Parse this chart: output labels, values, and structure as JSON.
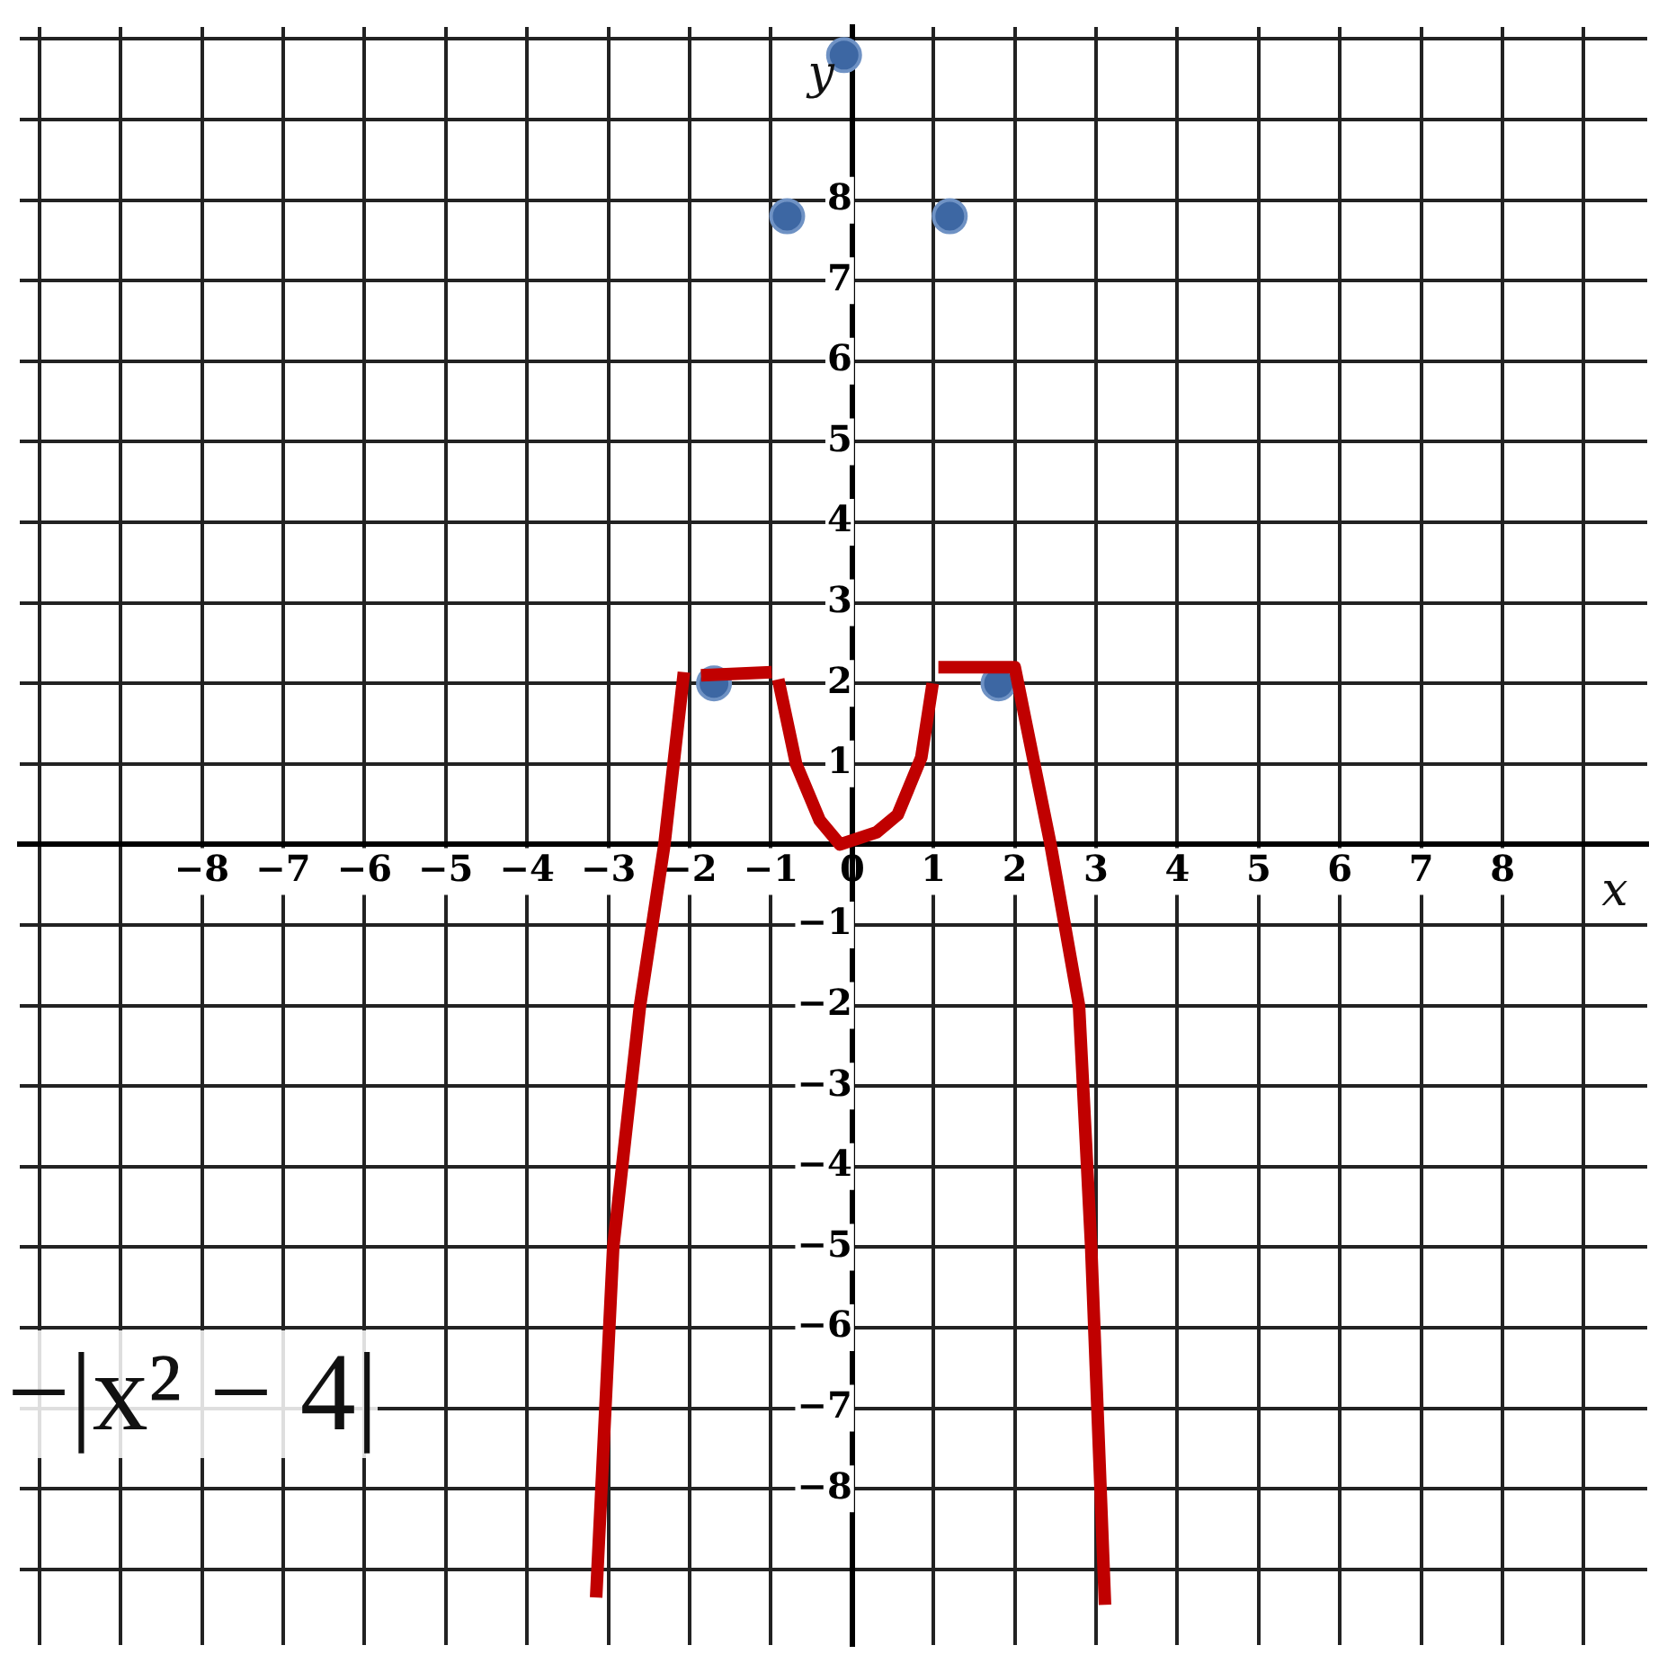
{
  "chart_data": {
    "type": "line",
    "xlabel": "x",
    "ylabel": "y",
    "xlim": [
      -10.24,
      9.78
    ],
    "ylim": [
      -9.94,
      10.15
    ],
    "xticks": [
      {
        "value": -10,
        "label": null
      },
      -8,
      -7,
      -6,
      -5,
      -4,
      -3,
      -2,
      -1,
      0,
      1,
      2,
      3,
      4,
      5,
      6,
      7,
      8,
      {
        "value": -9,
        "label": null
      },
      {
        "value": 9,
        "label": null
      }
    ],
    "yticks": [
      {
        "value": -9,
        "label": null
      },
      -8,
      -7,
      -6,
      -5,
      -4,
      -3,
      -2,
      -1,
      {
        "value": 0,
        "label": null
      },
      1,
      2,
      3,
      4,
      5,
      6,
      7,
      8,
      {
        "value": 9,
        "label": null
      },
      {
        "value": 10,
        "label": null
      }
    ],
    "grid": true,
    "legend": false,
    "line_style": "solid",
    "annotations": [
      "−|x² − 4|"
    ],
    "series": [
      {
        "color": "#c00000",
        "marker": "none",
        "x": [
          -3.15,
          -2.94,
          -2.61,
          -2.31,
          -2.07
        ],
        "values": [
          -9.35,
          -5,
          -2,
          0,
          2.14
        ]
      },
      {
        "color": "#c00000",
        "marker": "none",
        "x": [
          -1.86,
          -0.99
        ],
        "values": [
          2.1,
          2.14
        ]
      },
      {
        "color": "#c00000",
        "marker": "none",
        "x": [
          -0.91,
          -0.69,
          -0.4,
          -0.15,
          0,
          0.3,
          0.56,
          0.85,
          0.99
        ],
        "values": [
          2.05,
          1,
          0.3,
          0,
          0.05,
          0.15,
          0.37,
          1.08,
          2
        ]
      },
      {
        "color": "#c00000",
        "marker": "none",
        "x": [
          1.06,
          2.0,
          2.44,
          2.79,
          2.94,
          3.11
        ],
        "values": [
          2.2,
          2.2,
          0,
          -2,
          -5,
          -9.44
        ]
      },
      {
        "type": "scatter",
        "color": "#3d67a3",
        "marker": "circle",
        "x": [
          -1.7,
          -0.8,
          1.2,
          -0.1,
          1.8
        ],
        "values": [
          2,
          7.8,
          7.8,
          9.8,
          2
        ]
      }
    ]
  }
}
